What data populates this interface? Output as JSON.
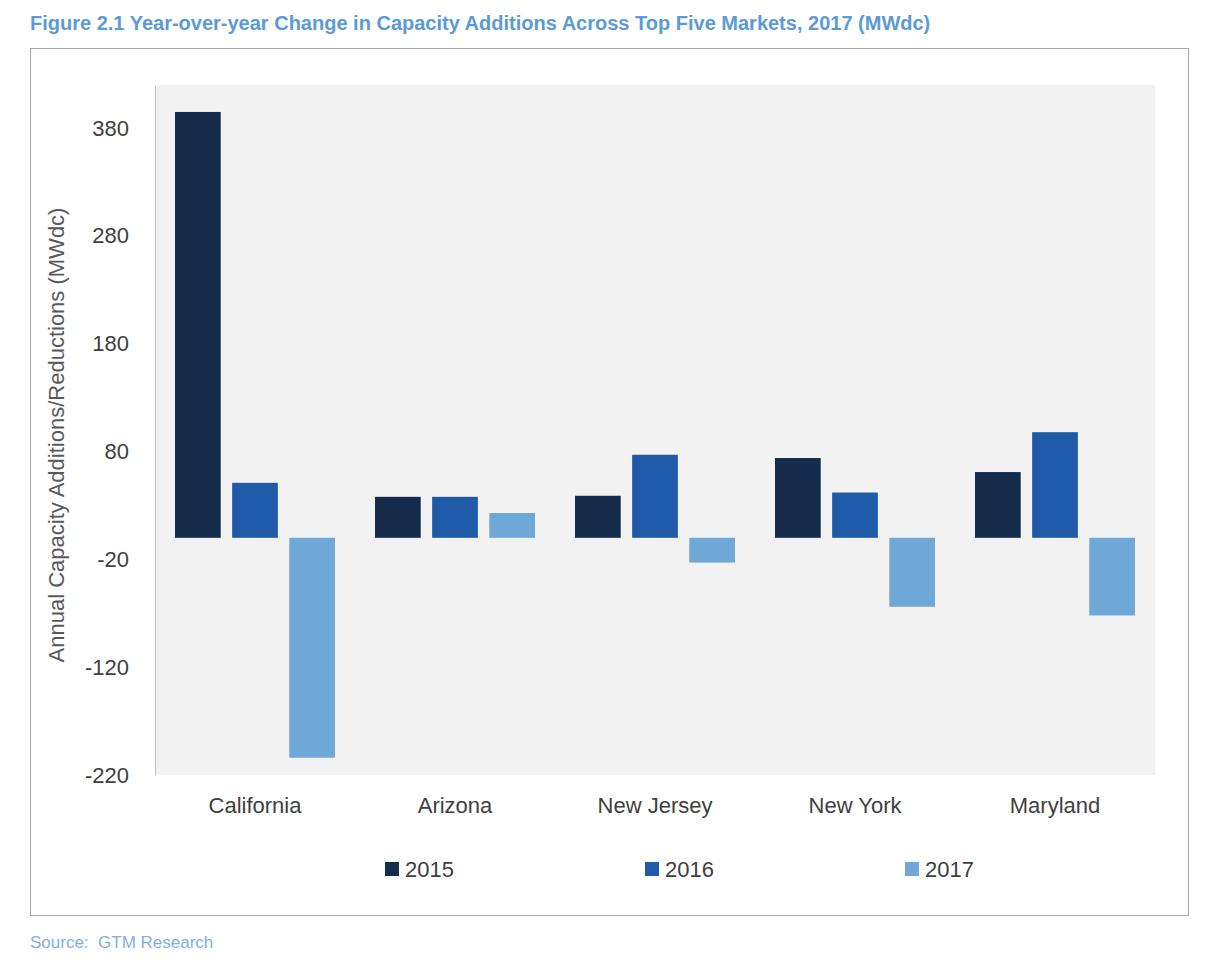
{
  "chart_data": {
    "type": "bar",
    "title": "Figure 2.1 Year-over-year Change in Capacity Additions Across Top Five Markets, 2017 (MWdc)",
    "y_label": "Annual Capacity Additions/Reductions (MWdc)",
    "source": "Source:  GTM Research",
    "categories": [
      "California",
      "Arizona",
      "New Jersey",
      "New York",
      "Maryland"
    ],
    "series": [
      {
        "name": "2015",
        "color": "#152c4c",
        "values": [
          395,
          38,
          39,
          74,
          61
        ]
      },
      {
        "name": "2016",
        "color": "#1f5ba8",
        "values": [
          51,
          38,
          77,
          42,
          98
        ]
      },
      {
        "name": "2017",
        "color": "#6fa8d6",
        "values": [
          -204,
          23,
          -23,
          -64,
          -72
        ]
      }
    ],
    "ylim": [
      -220,
      420
    ],
    "yticks": [
      -220,
      -120,
      -20,
      80,
      180,
      280,
      380
    ],
    "grid": false,
    "legend": "bottom"
  }
}
